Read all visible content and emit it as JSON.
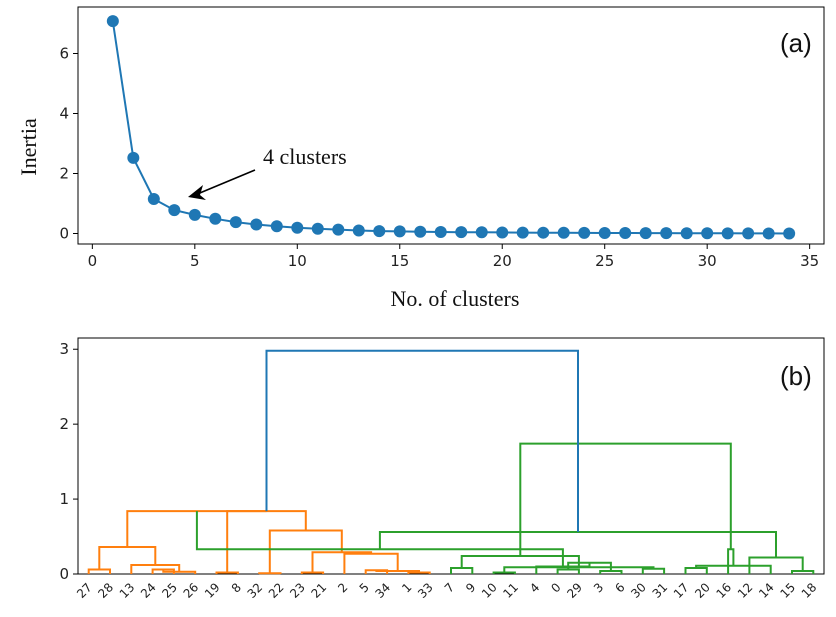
{
  "chart_data": [
    {
      "type": "line",
      "panel_label": "(a)",
      "xlabel": "No. of clusters",
      "ylabel": "Inertia",
      "xlim": [
        -0.7,
        35.7
      ],
      "ylim": [
        -0.35,
        7.55
      ],
      "xticks": [
        0,
        5,
        10,
        15,
        20,
        25,
        30,
        35
      ],
      "yticks": [
        0,
        2,
        4,
        6
      ],
      "grid": false,
      "color": "#1f77b4",
      "x": [
        1,
        2,
        3,
        4,
        5,
        6,
        7,
        8,
        9,
        10,
        11,
        12,
        13,
        14,
        15,
        16,
        17,
        18,
        19,
        20,
        21,
        22,
        23,
        24,
        25,
        26,
        27,
        28,
        29,
        30,
        31,
        32,
        33,
        34
      ],
      "y": [
        7.08,
        2.52,
        1.15,
        0.78,
        0.62,
        0.49,
        0.38,
        0.3,
        0.24,
        0.19,
        0.16,
        0.13,
        0.1,
        0.08,
        0.07,
        0.06,
        0.05,
        0.045,
        0.04,
        0.035,
        0.03,
        0.027,
        0.024,
        0.021,
        0.018,
        0.016,
        0.014,
        0.012,
        0.01,
        0.008,
        0.006,
        0.004,
        0.002,
        0.0
      ],
      "annotation": {
        "text": "4 clusters",
        "x": 4,
        "y": 0.78
      }
    },
    {
      "type": "dendrogram",
      "panel_label": "(b)",
      "ylim": [
        0,
        3.15
      ],
      "yticks": [
        0,
        1,
        2,
        3
      ],
      "grid": false,
      "leaves": [
        "27",
        "28",
        "13",
        "24",
        "25",
        "26",
        "19",
        "8",
        "32",
        "22",
        "23",
        "21",
        "2",
        "5",
        "34",
        "1",
        "33",
        "7",
        "9",
        "10",
        "11",
        "4",
        "0",
        "29",
        "3",
        "6",
        "30",
        "31",
        "17",
        "20",
        "16",
        "12",
        "14",
        "15",
        "18"
      ],
      "colors": {
        "left": "#ff7f0e",
        "right": "#2ca02c",
        "root": "#1f77b4"
      },
      "links": [
        {
          "l": 0,
          "r": 1,
          "h": 0.06,
          "c": "left"
        },
        {
          "l": 3,
          "r": 4,
          "h": 0.06,
          "c": "left"
        },
        {
          "l": 36,
          "r": 5,
          "h": 0.03,
          "c": "left"
        },
        {
          "l": 2,
          "r": 37,
          "h": 0.12,
          "c": "left"
        },
        {
          "l": 35,
          "r": 38,
          "h": 0.36,
          "c": "left"
        },
        {
          "l": 6,
          "r": 7,
          "h": 0.02,
          "c": "left"
        },
        {
          "l": 8,
          "r": 9,
          "h": 0.01,
          "c": "left"
        },
        {
          "l": 10,
          "r": 11,
          "h": 0.02,
          "c": "left"
        },
        {
          "l": 13,
          "r": 14,
          "h": 0.05,
          "c": "left"
        },
        {
          "l": 16,
          "r": 15,
          "h": 0.02,
          "c": "left"
        },
        {
          "l": 44,
          "r": 43,
          "h": 0.04,
          "c": "left"
        },
        {
          "l": 12,
          "r": 45,
          "h": 0.27,
          "c": "left"
        },
        {
          "l": 42,
          "r": 46,
          "h": 0.29,
          "c": "left"
        },
        {
          "l": 41,
          "r": 47,
          "h": 0.58,
          "c": "left"
        },
        {
          "l": 40,
          "r": 48,
          "h": 0.84,
          "c": "left"
        },
        {
          "l": 39,
          "r": 49,
          "h": 0.84,
          "c": "left"
        },
        {
          "l": 17,
          "r": 18,
          "h": 0.08,
          "c": "right"
        },
        {
          "l": 19,
          "r": 20,
          "h": 0.02,
          "c": "right"
        },
        {
          "l": 22,
          "r": 23,
          "h": 0.06,
          "c": "right"
        },
        {
          "l": 24,
          "r": 25,
          "h": 0.04,
          "c": "right"
        },
        {
          "l": 26,
          "r": 27,
          "h": 0.07,
          "c": "right"
        },
        {
          "l": 53,
          "r": 54,
          "h": 0.15,
          "c": "right"
        },
        {
          "l": 52,
          "r": 55,
          "h": 0.09,
          "c": "right"
        },
        {
          "l": 21,
          "r": 56,
          "h": 0.1,
          "c": "right"
        },
        {
          "l": 51,
          "r": 57,
          "h": 0.24,
          "c": "right"
        },
        {
          "l": 50,
          "r": 58,
          "h": 0.33,
          "c": "right"
        },
        {
          "l": 28,
          "r": 29,
          "h": 0.08,
          "c": "right"
        },
        {
          "l": 33,
          "r": 34,
          "h": 0.04,
          "c": "right"
        },
        {
          "l": 32,
          "r": 61,
          "h": 0.11,
          "c": "right"
        },
        {
          "l": 31,
          "r": 62,
          "h": 0.22,
          "c": "right"
        },
        {
          "l": 30,
          "r": 63,
          "h": 0.33,
          "c": "right"
        },
        {
          "l": 60,
          "r": 64,
          "h": 0.56,
          "c": "right"
        },
        {
          "l": 59,
          "r": 65,
          "h": 1.74,
          "c": "right"
        },
        {
          "l": 49,
          "r": 66,
          "h": 2.98,
          "c": "root"
        }
      ]
    }
  ]
}
